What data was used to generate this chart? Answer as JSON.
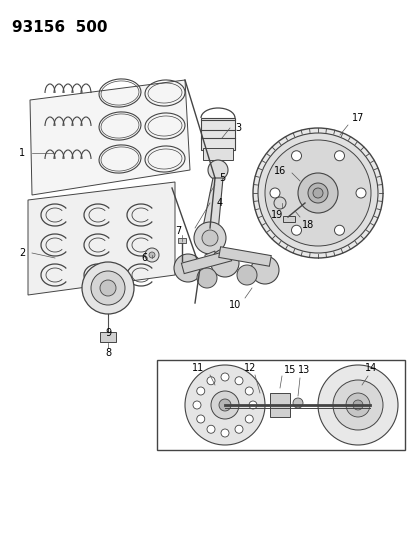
{
  "title": "93156  500",
  "background_color": "#ffffff",
  "line_color": "#444444",
  "title_fontsize": 11,
  "label_fontsize": 7,
  "fig_width": 4.14,
  "fig_height": 5.33,
  "dpi": 100
}
